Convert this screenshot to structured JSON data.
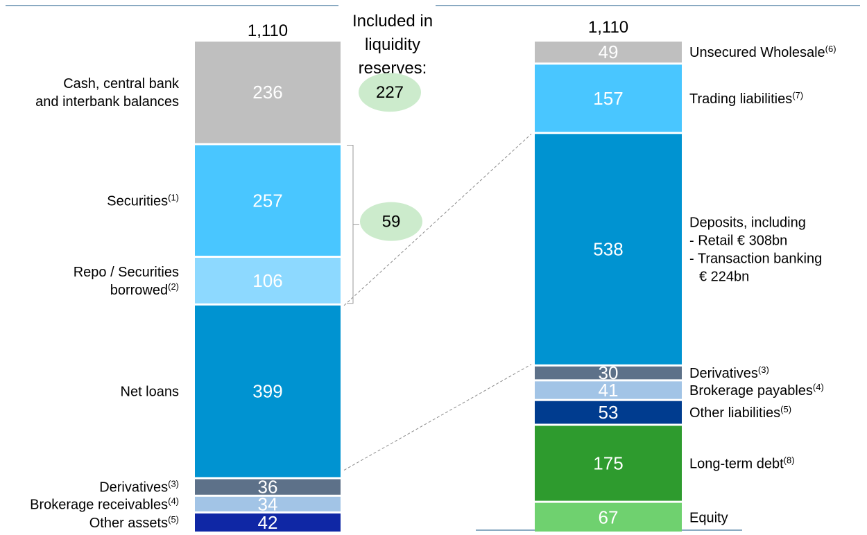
{
  "chart_data": [
    {
      "type": "stacked-bar",
      "total_label": "1,110",
      "segments": [
        {
          "label": "Cash, central bank and interbank balances",
          "label_lines": [
            "Cash, central bank",
            "and interbank balances"
          ],
          "value": 236,
          "color": "#bfbfbf"
        },
        {
          "label": "Securities",
          "label_lines": [
            "Securities"
          ],
          "footnote": "(1)",
          "value": 257,
          "color": "#49c6ff"
        },
        {
          "label": "Repo / Securities borrowed",
          "label_lines": [
            "Repo / Securities",
            "borrowed"
          ],
          "footnote": "(2)",
          "value": 106,
          "color": "#8dd9ff"
        },
        {
          "label": "Net loans",
          "label_lines": [
            "Net loans"
          ],
          "value": 399,
          "color": "#0093d1"
        },
        {
          "label": "Derivatives",
          "label_lines": [
            "Derivatives"
          ],
          "footnote": "(3)",
          "value": 36,
          "color": "#5d7189"
        },
        {
          "label": "Brokerage receivables",
          "label_lines": [
            "Brokerage receivables"
          ],
          "footnote": "(4)",
          "value": 34,
          "color": "#a2c4e6"
        },
        {
          "label": "Other assets",
          "label_lines": [
            "Other assets"
          ],
          "footnote": "(5)",
          "value": 42,
          "color": "#0f27a5"
        }
      ]
    },
    {
      "type": "stacked-bar",
      "total_label": "1,110",
      "segments": [
        {
          "label": "Unsecured Wholesale",
          "label_lines": [
            "Unsecured Wholesale"
          ],
          "footnote": "(6)",
          "value": 49,
          "color": "#bfbfbf"
        },
        {
          "label": "Trading liabilities",
          "label_lines": [
            "Trading liabilities"
          ],
          "footnote": "(7)",
          "value": 157,
          "color": "#49c6ff"
        },
        {
          "label": "Deposits, including - Retail €308bn - Transaction banking €224bn",
          "label_lines": [
            "Deposits, including",
            "- Retail € 308bn",
            "- Transaction banking",
            "€ 224bn"
          ],
          "value": 538,
          "color": "#0093d1"
        },
        {
          "label": "Derivatives",
          "label_lines": [
            "Derivatives"
          ],
          "footnote": "(3)",
          "value": 30,
          "color": "#5d7189"
        },
        {
          "label": "Brokerage payables",
          "label_lines": [
            "Brokerage payables"
          ],
          "footnote": "(4)",
          "value": 41,
          "color": "#a2c4e6"
        },
        {
          "label": "Other liabilities",
          "label_lines": [
            "Other liabilities"
          ],
          "footnote": "(5)",
          "value": 53,
          "color": "#003c8f"
        },
        {
          "label": "Long-term debt",
          "label_lines": [
            "Long-term debt"
          ],
          "footnote": "(8)",
          "value": 175,
          "color": "#2e9b2e"
        },
        {
          "label": "Equity",
          "label_lines": [
            "Equity"
          ],
          "value": 67,
          "color": "#6fd16f"
        }
      ]
    }
  ],
  "liquidity": {
    "heading_lines": [
      "Included in",
      "liquidity",
      "reserves:"
    ],
    "cash_value": "227",
    "securities_value": "59",
    "bubble_color": "#ccebcc"
  },
  "colors": {
    "header_rule": "#8aaac2",
    "connector": "#8a8a8a",
    "bracket": "#9a9a9a"
  }
}
